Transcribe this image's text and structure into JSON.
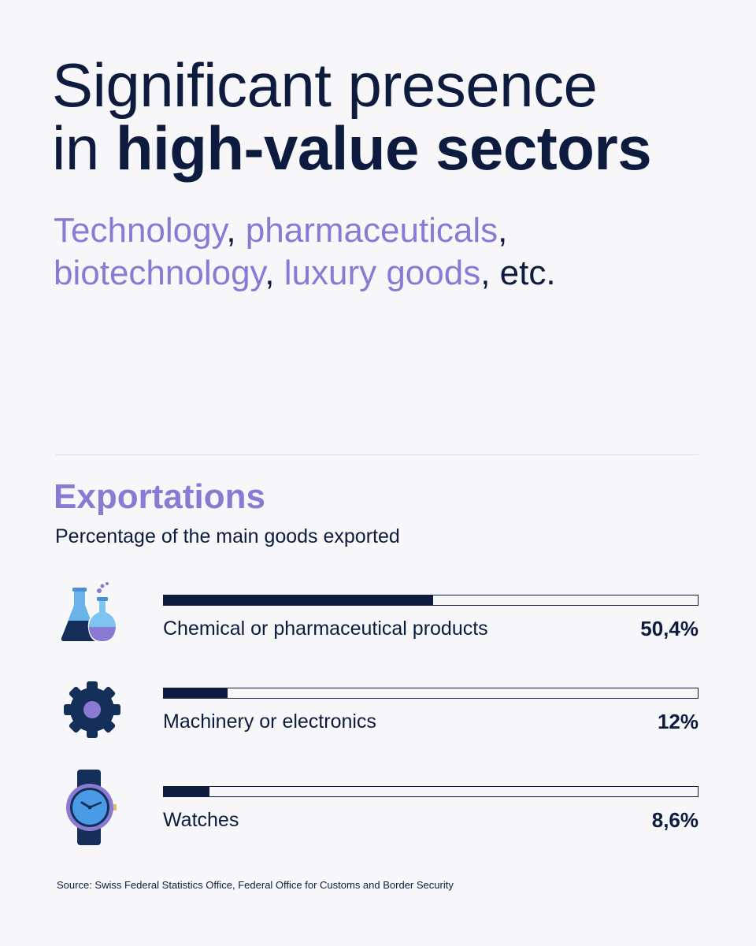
{
  "headline": {
    "line1": "Significant presence",
    "line2_regular": "in ",
    "line2_bold": "high-value sectors"
  },
  "subtitle": {
    "parts": [
      {
        "text": "Technology",
        "accent": true
      },
      {
        "text": ", ",
        "accent": false
      },
      {
        "text": "pharmaceuticals",
        "accent": true
      },
      {
        "text": ",",
        "accent": false
      },
      {
        "text": "biotechnology",
        "accent": true
      },
      {
        "text": ", ",
        "accent": false
      },
      {
        "text": "luxury goods",
        "accent": true
      },
      {
        "text": ", etc.",
        "accent": false
      }
    ]
  },
  "colors": {
    "navy": "#0d1b3e",
    "accent": "#8b7ad4",
    "background": "#f7f7f9"
  },
  "chart_data": {
    "type": "bar",
    "title": "Exportations",
    "subtitle": "Percentage of the main goods exported",
    "categories": [
      "Chemical or pharmaceutical products",
      "Machinery or electronics",
      "Watches"
    ],
    "values": [
      50.4,
      12,
      8.6
    ],
    "value_labels": [
      "50,4%",
      "12%",
      "8,6%"
    ],
    "icons": [
      "flask-icon",
      "gear-icon",
      "watch-icon"
    ],
    "ylim": [
      0,
      100
    ]
  },
  "source": "Source: Swiss Federal Statistics Office, Federal Office for Customs and Border Security"
}
